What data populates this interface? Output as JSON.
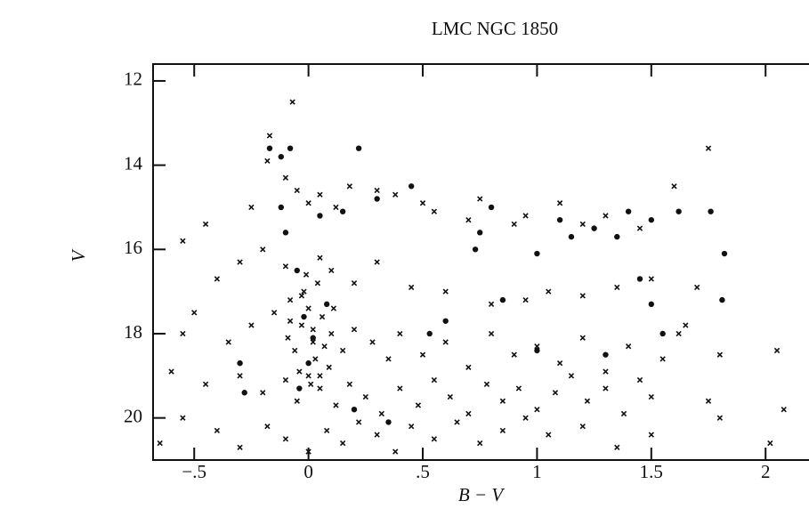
{
  "chart_data": {
    "type": "scatter",
    "title": "LMC  NGC 1850",
    "x_label": "B − V",
    "y_label": "V",
    "xlim": [
      -0.68,
      2.19
    ],
    "ylim": [
      21,
      11.6
    ],
    "xticks": [
      {
        "value": -0.5,
        "label": "−.5"
      },
      0,
      {
        "value": 0.5,
        "label": ".5"
      },
      1,
      1.5,
      2
    ],
    "yticks": [
      12,
      14,
      16,
      18,
      20
    ],
    "grid": false,
    "series": [
      {
        "marker": "cross",
        "color": "#111111",
        "x": [
          -0.07,
          -0.17,
          -0.18,
          -0.1,
          -0.05,
          0.0,
          0.05,
          0.12,
          0.18,
          0.3,
          0.38,
          0.5,
          0.55,
          0.7,
          0.75,
          0.9,
          0.95,
          1.1,
          1.2,
          1.3,
          1.45,
          1.6,
          1.75,
          -0.25,
          -0.45,
          -0.55,
          -0.3,
          -0.2,
          -0.1,
          0.05,
          0.1,
          0.2,
          0.3,
          0.45,
          0.6,
          0.8,
          0.95,
          1.05,
          1.2,
          1.35,
          1.5,
          1.7,
          1.65,
          -0.4,
          -0.5,
          -0.55,
          -0.35,
          -0.25,
          -0.15,
          -0.08,
          -0.03,
          0.02,
          0.06,
          0.1,
          0.15,
          0.2,
          0.28,
          0.35,
          0.4,
          0.5,
          0.6,
          0.7,
          0.8,
          0.9,
          1.0,
          1.1,
          1.2,
          1.3,
          1.4,
          1.45,
          1.55,
          1.62,
          1.8,
          2.05,
          -0.6,
          -0.45,
          -0.3,
          -0.2,
          -0.1,
          -0.05,
          0.0,
          0.05,
          0.12,
          0.18,
          0.25,
          0.32,
          0.4,
          0.48,
          0.55,
          0.62,
          0.7,
          0.78,
          0.85,
          0.92,
          1.0,
          1.08,
          1.15,
          1.22,
          1.3,
          1.38,
          1.5,
          1.75,
          -0.55,
          -0.4,
          -0.3,
          -0.18,
          -0.1,
          0.0,
          0.08,
          0.15,
          0.22,
          0.3,
          0.38,
          0.45,
          0.55,
          0.65,
          0.75,
          0.85,
          0.95,
          1.05,
          1.2,
          1.35,
          1.5,
          1.8,
          2.08,
          2.02,
          -0.65,
          -0.02,
          0.0,
          0.03,
          -0.04,
          0.01,
          0.04,
          -0.06,
          0.02,
          -0.08,
          0.07,
          -0.01,
          0.05,
          -0.03,
          0.09,
          -0.09,
          0.11
        ],
        "values": [
          12.5,
          13.3,
          13.9,
          14.3,
          14.6,
          14.9,
          14.7,
          15.0,
          14.5,
          14.6,
          14.7,
          14.9,
          15.1,
          15.3,
          14.8,
          15.4,
          15.2,
          14.9,
          15.4,
          15.2,
          15.5,
          14.5,
          13.6,
          15.0,
          15.4,
          15.8,
          16.3,
          16.0,
          16.4,
          16.2,
          16.5,
          16.8,
          16.3,
          16.9,
          17.0,
          17.3,
          17.2,
          17.0,
          17.1,
          16.9,
          16.7,
          16.9,
          17.8,
          16.7,
          17.5,
          18.0,
          18.2,
          17.8,
          17.5,
          17.2,
          17.8,
          18.2,
          17.6,
          18.0,
          18.4,
          17.9,
          18.2,
          18.6,
          18.0,
          18.5,
          18.2,
          18.8,
          18.0,
          18.5,
          18.3,
          18.7,
          18.1,
          18.9,
          18.3,
          19.1,
          18.6,
          18.0,
          18.5,
          18.4,
          18.9,
          19.2,
          19.0,
          19.4,
          19.1,
          19.6,
          19.0,
          19.3,
          19.7,
          19.2,
          19.5,
          19.9,
          19.3,
          19.7,
          19.1,
          19.5,
          19.9,
          19.2,
          19.6,
          19.3,
          19.8,
          19.4,
          19.0,
          19.6,
          19.3,
          19.9,
          19.5,
          19.6,
          20.0,
          20.3,
          20.7,
          20.2,
          20.5,
          20.8,
          20.3,
          20.6,
          20.1,
          20.4,
          20.8,
          20.2,
          20.5,
          20.1,
          20.6,
          20.3,
          20.0,
          20.4,
          20.2,
          20.7,
          20.4,
          20.0,
          19.8,
          20.6,
          20.6,
          17.0,
          17.4,
          18.6,
          18.9,
          19.2,
          16.8,
          18.4,
          17.9,
          17.7,
          18.3,
          16.6,
          19.0,
          17.1,
          18.8,
          18.1,
          17.4
        ]
      },
      {
        "marker": "dot",
        "color": "#111111",
        "x": [
          -0.17,
          -0.12,
          -0.08,
          0.22,
          -0.12,
          0.05,
          0.15,
          0.3,
          0.45,
          0.8,
          1.0,
          1.1,
          1.15,
          1.25,
          1.35,
          1.4,
          1.5,
          1.62,
          1.76,
          1.82,
          1.81,
          1.5,
          1.45,
          1.3,
          1.55,
          0.73,
          0.75,
          0.6,
          0.53,
          0.85,
          -0.3,
          -0.28,
          -0.05,
          -0.1,
          -0.02,
          0.02,
          0.0,
          0.08,
          -0.04,
          0.2,
          0.35,
          1.0
        ],
        "values": [
          13.6,
          13.8,
          13.6,
          13.6,
          15.0,
          15.2,
          15.1,
          14.8,
          14.5,
          15.0,
          16.1,
          15.3,
          15.7,
          15.5,
          15.7,
          15.1,
          15.3,
          15.1,
          15.1,
          16.1,
          17.2,
          17.3,
          16.7,
          18.5,
          18.0,
          16.0,
          15.6,
          17.7,
          18.0,
          17.2,
          18.7,
          19.4,
          16.5,
          15.6,
          17.6,
          18.1,
          18.7,
          17.3,
          19.3,
          19.8,
          20.1,
          18.4
        ]
      }
    ]
  }
}
